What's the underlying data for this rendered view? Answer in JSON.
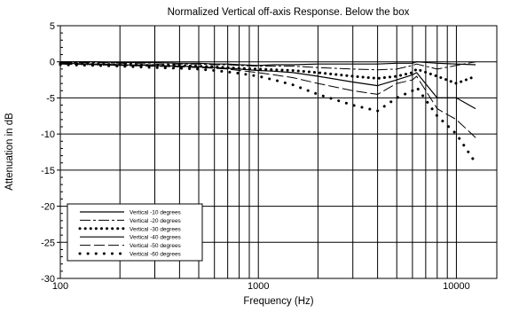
{
  "chart_data": {
    "type": "line",
    "title": "Normalized Vertical off-axis Response. Below the box",
    "xlabel": "Frequency (Hz)",
    "ylabel": "Attenuation in dB",
    "x_scale": "log",
    "xlim": [
      100,
      16000
    ],
    "ylim": [
      -30,
      5
    ],
    "x_ticks": [
      100,
      1000,
      10000
    ],
    "x_tick_labels": [
      "100",
      "1000",
      "10000"
    ],
    "y_ticks": [
      5,
      0,
      -5,
      -10,
      -15,
      -20,
      -25,
      -30
    ],
    "y_tick_labels": [
      "5",
      "0",
      "-5",
      "-10",
      "-15",
      "-20",
      "-25",
      "-30"
    ],
    "grid": true,
    "legend_position": "bottom-left",
    "series": [
      {
        "name": "Vertical -10 degrees",
        "style": "solid",
        "x": [
          100,
          150,
          200,
          300,
          400,
          500,
          600,
          700,
          800,
          1000,
          1200,
          1500,
          2000,
          3000,
          4000,
          5000,
          6000,
          6300,
          8000,
          10000,
          12500
        ],
        "y": [
          0,
          0,
          -0.1,
          -0.1,
          -0.2,
          -0.2,
          -0.3,
          -0.3,
          -0.4,
          -0.5,
          -0.4,
          -0.4,
          -0.3,
          -0.3,
          -0.3,
          -0.2,
          -0.2,
          0,
          -0.2,
          -0.3,
          -0.4
        ]
      },
      {
        "name": "Vertical -20 degrees",
        "style": "dashdot",
        "x": [
          100,
          150,
          200,
          300,
          400,
          500,
          600,
          700,
          800,
          1000,
          1200,
          1500,
          2000,
          3000,
          4000,
          5000,
          6000,
          6300,
          8000,
          10000,
          12500
        ],
        "y": [
          -0.1,
          -0.1,
          -0.2,
          -0.3,
          -0.3,
          -0.3,
          -0.4,
          -0.4,
          -0.5,
          -0.6,
          -0.6,
          -0.6,
          -0.8,
          -1.0,
          -1.1,
          -1.0,
          -0.5,
          -0.3,
          -1.0,
          -0.5,
          0
        ]
      },
      {
        "name": "Vertical -30 degrees",
        "style": "dotted-sparse",
        "x": [
          100,
          150,
          200,
          300,
          400,
          500,
          600,
          700,
          800,
          1000,
          1200,
          1500,
          2000,
          3000,
          4000,
          5000,
          6000,
          6300,
          8000,
          10000,
          12500
        ],
        "y": [
          -0.2,
          -0.3,
          -0.4,
          -0.5,
          -0.5,
          -0.6,
          -0.7,
          -0.8,
          -0.9,
          -1.0,
          -1.1,
          -1.2,
          -1.5,
          -2.0,
          -2.3,
          -2.0,
          -1.5,
          -1.0,
          -2.0,
          -3.0,
          -2.0
        ]
      },
      {
        "name": "Vertical -40 degrees",
        "style": "solid",
        "x": [
          100,
          150,
          200,
          300,
          400,
          500,
          600,
          700,
          800,
          1000,
          1200,
          1500,
          2000,
          3000,
          4000,
          5000,
          6000,
          6300,
          8000,
          10000,
          12500
        ],
        "y": [
          -0.2,
          -0.3,
          -0.4,
          -0.5,
          -0.6,
          -0.7,
          -0.8,
          -0.9,
          -1.0,
          -1.2,
          -1.3,
          -1.5,
          -2.0,
          -2.8,
          -3.3,
          -2.5,
          -1.8,
          -1.5,
          -5.0,
          -5.0,
          -6.5
        ]
      },
      {
        "name": "Vertical -50 degrees",
        "style": "longdash",
        "x": [
          100,
          150,
          200,
          300,
          400,
          500,
          600,
          700,
          800,
          1000,
          1200,
          1500,
          2000,
          3000,
          4000,
          5000,
          6000,
          6300,
          8000,
          10000,
          12500
        ],
        "y": [
          -0.3,
          -0.4,
          -0.5,
          -0.6,
          -0.7,
          -0.8,
          -0.9,
          -1.0,
          -1.2,
          -1.5,
          -1.8,
          -2.2,
          -3.0,
          -4.0,
          -4.5,
          -3.0,
          -2.5,
          -2.0,
          -6.5,
          -8.0,
          -10.5
        ]
      },
      {
        "name": "Vertical -60 degrees",
        "style": "dotted",
        "x": [
          100,
          150,
          200,
          300,
          400,
          500,
          600,
          700,
          800,
          1000,
          1200,
          1500,
          2000,
          3000,
          4000,
          5000,
          6000,
          6300,
          8000,
          10000,
          12500
        ],
        "y": [
          -0.4,
          -0.5,
          -0.6,
          -0.8,
          -0.9,
          -1.0,
          -1.2,
          -1.4,
          -1.6,
          -2.0,
          -2.5,
          -3.2,
          -4.5,
          -6.0,
          -6.8,
          -5.0,
          -4.0,
          -3.5,
          -7.5,
          -10.0,
          -14.0
        ]
      }
    ]
  }
}
